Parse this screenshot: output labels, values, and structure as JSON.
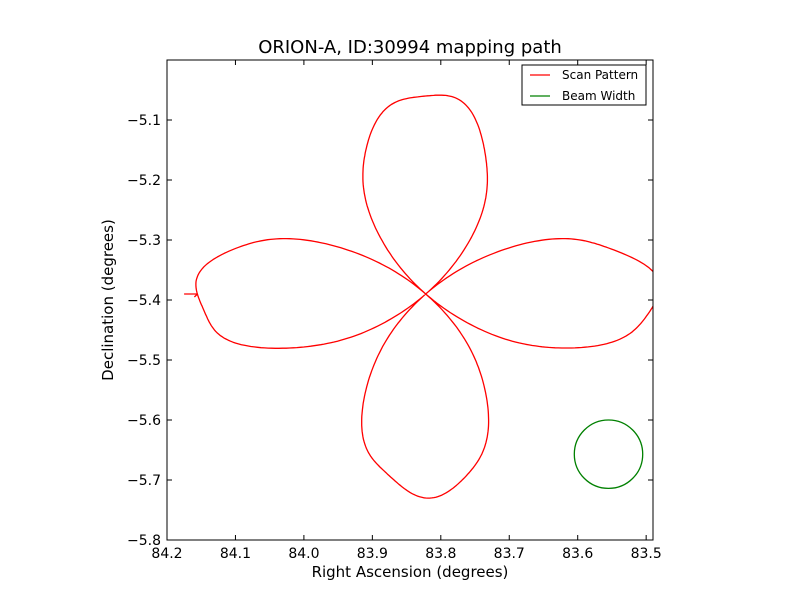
{
  "chart_data": {
    "type": "line",
    "title": "ORION-A, ID:30994 mapping path",
    "xlabel": "Right Ascension (degrees)",
    "ylabel": "Declination (degrees)",
    "xlim": [
      84.2,
      83.49
    ],
    "ylim": [
      -5.8,
      -5.0
    ],
    "x_ticks": [
      84.2,
      84.1,
      84.0,
      83.9,
      83.8,
      83.7,
      83.6,
      83.5
    ],
    "x_tick_labels": [
      "84.2",
      "84.1",
      "84.0",
      "83.9",
      "83.8",
      "83.7",
      "83.6",
      "83.5"
    ],
    "y_ticks": [
      -5.8,
      -5.7,
      -5.6,
      -5.5,
      -5.4,
      -5.3,
      -5.2,
      -5.1
    ],
    "y_tick_labels": [
      "−5.8",
      "−5.7",
      "−5.6",
      "−5.5",
      "−5.4",
      "−5.3",
      "−5.2",
      "−5.1"
    ],
    "grid": false,
    "legend": {
      "placement": "top-right"
    },
    "series": [
      {
        "name": "Scan Pattern",
        "color": "#ff0000",
        "kind": "path",
        "center": [
          83.822,
          -5.39
        ],
        "amplitude_ra": 0.337,
        "amplitude_dec": 0.335,
        "lobes": 4,
        "start": [
          84.16,
          -5.395
        ],
        "end": [
          84.175,
          -5.39
        ]
      },
      {
        "name": "Beam Width",
        "color": "#008000",
        "kind": "circle",
        "center": [
          83.555,
          -5.657
        ],
        "radius_dec": 0.057
      }
    ]
  }
}
